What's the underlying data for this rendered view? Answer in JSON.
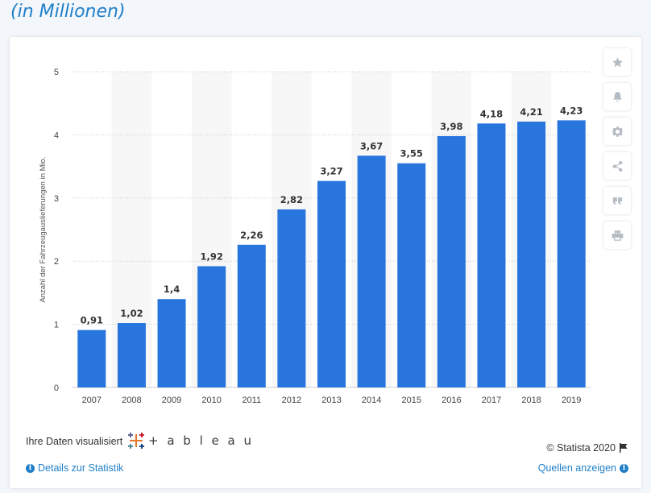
{
  "header": {
    "title": "(in Millionen)"
  },
  "chart_data": {
    "type": "bar",
    "categories": [
      "2007",
      "2008",
      "2009",
      "2010",
      "2011",
      "2012",
      "2013",
      "2014",
      "2015",
      "2016",
      "2017",
      "2018",
      "2019"
    ],
    "values": [
      0.91,
      1.02,
      1.4,
      1.92,
      2.26,
      2.82,
      3.27,
      3.67,
      3.55,
      3.98,
      4.18,
      4.21,
      4.23
    ],
    "value_labels": [
      "0,91",
      "1,02",
      "1,4",
      "1,92",
      "2,26",
      "2,82",
      "3,27",
      "3,67",
      "3,55",
      "3,98",
      "4,18",
      "4,21",
      "4,23"
    ],
    "title": "",
    "xlabel": "",
    "ylabel": "Anzahl der Fahrzeugauslieferungen in Mio.",
    "ylim": [
      0,
      5
    ],
    "yticks": [
      0,
      1,
      2,
      3,
      4,
      5
    ],
    "grid": true,
    "bar_color": "#2876dd",
    "band_color": "#f7f7f7"
  },
  "toolbar": {
    "buttons": [
      {
        "name": "star-icon"
      },
      {
        "name": "bell-icon"
      },
      {
        "name": "gear-icon"
      },
      {
        "name": "share-icon"
      },
      {
        "name": "quote-icon"
      },
      {
        "name": "print-icon"
      }
    ]
  },
  "footer": {
    "visualized_label": "Ihre Daten visualisiert",
    "tableau_text": "+ a b l e a u",
    "copyright": "© Statista 2020",
    "details_link": "Details zur Statistik",
    "sources_link": "Quellen anzeigen"
  },
  "colors": {
    "accent": "#1f7fc8"
  }
}
